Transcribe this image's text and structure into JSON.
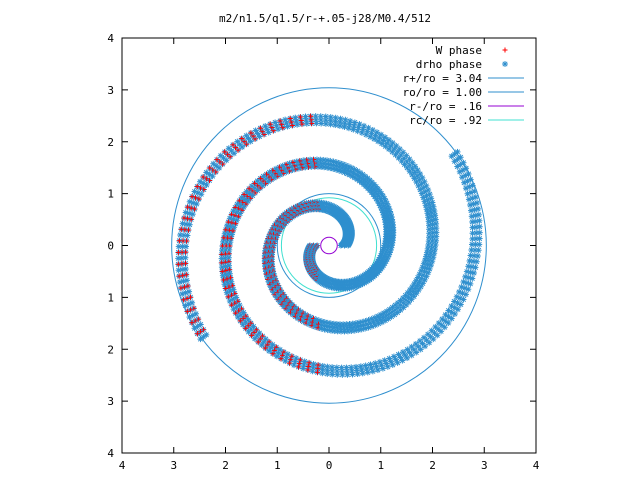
{
  "chart_data": {
    "type": "scatter",
    "title": "m2/n1.5/q1.5/r-+.05-j28/M0.4/512",
    "xlabel": "",
    "ylabel": "",
    "xlim": [
      -4,
      4
    ],
    "ylim": [
      -4,
      4
    ],
    "x_tick_labels": [
      "4",
      "3",
      "2",
      "1",
      "0",
      "1",
      "2",
      "3",
      "4"
    ],
    "y_tick_labels": [
      "4",
      "3",
      "2",
      "1",
      "0",
      "1",
      "2",
      "3",
      "4"
    ],
    "grid": false,
    "legend_position": "top-right",
    "circles": [
      {
        "name": "r+/ro = 3.04",
        "radius": 3.04,
        "color": "#2f8fce"
      },
      {
        "name": "ro/ro = 1.00",
        "radius": 1.0,
        "color": "#2f8fce"
      },
      {
        "name": "r-/ro =  .16",
        "radius": 0.16,
        "color": "#9400d3"
      },
      {
        "name": "rc/ro =  .92",
        "radius": 0.92,
        "color": "#40e0d0"
      }
    ],
    "series": [
      {
        "name": "W phase",
        "marker": "plus",
        "color": "#ff0000",
        "region": "left"
      },
      {
        "name": "drho phase",
        "marker": "star",
        "color": "#2f8fce",
        "region": "all"
      }
    ],
    "spiral": {
      "arms": 2,
      "r_start": 0.3,
      "r_end": 3.0,
      "pitch_turns": 1.6
    }
  }
}
